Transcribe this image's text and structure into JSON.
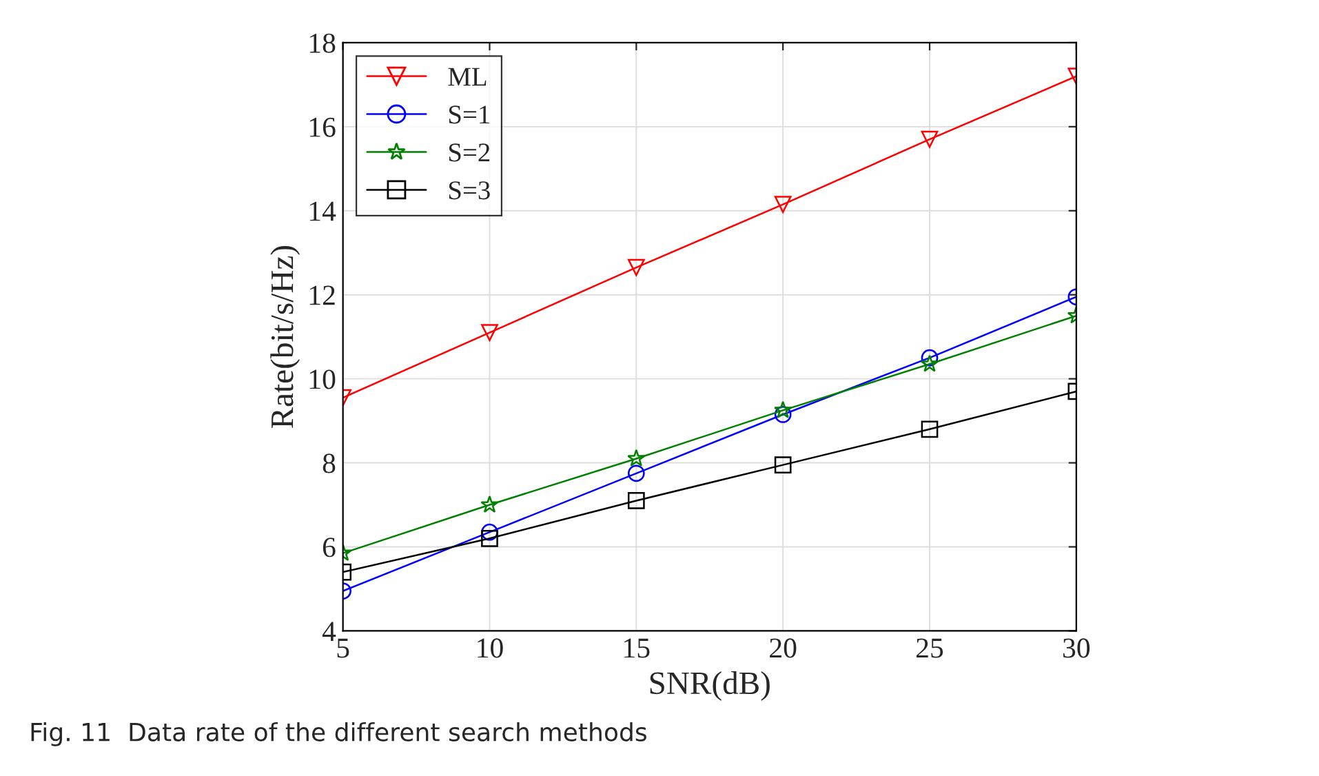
{
  "chart_data": {
    "type": "line",
    "xlabel": "SNR(dB)",
    "ylabel": "Rate(bit/s/Hz)",
    "x": [
      5,
      10,
      15,
      20,
      25,
      30
    ],
    "series": [
      {
        "name": "ML",
        "color": "#ff0000",
        "marker": "triangle",
        "values": [
          9.55,
          11.1,
          12.65,
          14.15,
          15.7,
          17.2
        ]
      },
      {
        "name": "S=1",
        "color": "#0000ff",
        "marker": "circle",
        "values": [
          4.95,
          6.35,
          7.75,
          9.15,
          10.5,
          11.95
        ]
      },
      {
        "name": "S=2",
        "color": "#008000",
        "marker": "star",
        "values": [
          5.85,
          7.0,
          8.1,
          9.25,
          10.35,
          11.5
        ]
      },
      {
        "name": "S=3",
        "color": "#000000",
        "marker": "square",
        "values": [
          5.4,
          6.2,
          7.1,
          7.95,
          8.8,
          9.7
        ]
      }
    ],
    "xlim": [
      5,
      30
    ],
    "xticks": [
      5,
      10,
      15,
      20,
      25,
      30
    ],
    "ylim": [
      4,
      18
    ],
    "yticks": [
      4,
      6,
      8,
      10,
      12,
      14,
      16,
      18
    ],
    "grid": true,
    "legend": "top left",
    "line_style": "solid",
    "annotations": [
      "Fig. 11  Data rate of the different search methods"
    ]
  }
}
